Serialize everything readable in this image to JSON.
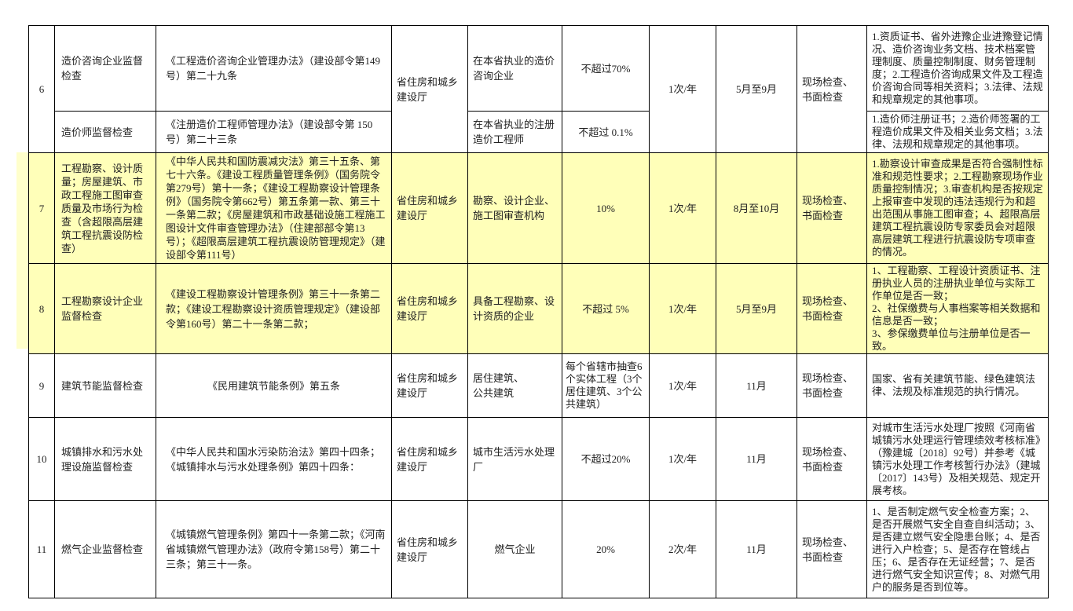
{
  "colors": {
    "highlight": "#ffffb9",
    "margin_highlight": "#ffffcc",
    "border": "#000000"
  },
  "rows": [
    {
      "no": "6",
      "item": "造价咨询企业监督检查",
      "basis": "《工程造价咨询企业管理办法》（建设部令第149号）第二十九条",
      "dept": "省住房和城乡建设厅",
      "object": "在本省执业的造价咨询企业",
      "ratio": "不超过70%",
      "freq": "1次/年",
      "time": "5月至9月",
      "method": "现场检查、书面检查",
      "content": "1.资质证书、省外进豫企业进豫登记情况、造价咨询业务文档、技术档案管理制度、质量控制制度、财务管理制度；2.工程造价咨询成果文件及工程造价咨询合同等相关资料；3.法律、法规和规章规定的其他事项。"
    },
    {
      "no": "",
      "item": "造价师监督检查",
      "basis": "《注册造价工程师管理办法》（建设部令第 150号）第二十三条",
      "dept": "",
      "object": "在本省执业的注册造价工程师",
      "ratio": "不超过 0.1%",
      "freq": "",
      "time": "",
      "method": "",
      "content": "1.造价师注册证书；2.造价师签署的工程造价成果文件及相关业务文档；3.法律、法规和规章规定的其他事项。"
    },
    {
      "no": "7",
      "item": "工程勘察、设计质量；房屋建筑、市政工程施工图审查质量及市场行为检查（含超限高层建筑工程抗震设防检查）",
      "basis": "《中华人民共和国防震减灾法》第三十五条、第七十六条。《建设工程质量管理条例》（国务院令第279号）第十一条；《建设工程勘察设计管理条例》（国务院令第662号）第五条第一款、第三十一条第二款；《房屋建筑和市政基础设施工程施工图设计文件审查管理办法》（住建部部令第13号）；《超限高层建筑工程抗震设防管理规定》（建设部令第111号）",
      "dept": "省住房和城乡建设厅",
      "object": "勘察、设计企业、施工图审查机构",
      "ratio": "10%",
      "freq": "1次/年",
      "time": "8月至10月",
      "method": "现场检查、书面检查",
      "content": "1.勘察设计审查成果是否符合强制性标准和规范性要求；2.工程勘察现场作业质量控制情况；3.审查机构是否按规定上报审查中发现的违法违规行为和超出范围从事施工图审查；4、超限高层建筑工程抗震设防专家委员会对超限高层建筑工程进行抗震设防专项审查的情况。"
    },
    {
      "no": "8",
      "item": "工程勘察设计企业监督检查",
      "basis": "《建设工程勘察设计管理条例》第三十一条第二款；《建设工程勘察设计资质管理规定》（建设部令第160号）第二十一条第二款；",
      "dept": "省住房和城乡建设厅",
      "object": "具备工程勘察、设计资质的企业",
      "ratio": "不超过 5%",
      "freq": "1次/年",
      "time": "5月至9月",
      "method": "现场检查、书面检查",
      "content": "1、工程勘察、工程设计资质证书、注册执业人员的注册执业单位与实际工作单位是否一致；\n2、社保缴费与人事档案等相关数据和信息是否一致；\n3、参保缴费单位与注册单位是否一致。"
    },
    {
      "no": "9",
      "item": "建筑节能监督检查",
      "basis": "《民用建筑节能条例》第五条",
      "dept": "省住房和城乡建设厅",
      "object": "居住建筑、\n公共建筑",
      "ratio": "每个省辖市抽查6个实体工程（3个居住建筑、3个公共建筑）",
      "freq": "1次/年",
      "time": "11月",
      "method": "现场检查、书面检查",
      "content": "国家、省有关建筑节能、绿色建筑法律、法规及标准规范的执行情况。"
    },
    {
      "no": "10",
      "item": "城镇排水和污水处理设施监督检查",
      "basis": "《中华人民共和国水污染防治法》第四十四条；《城镇排水与污水处理条例》第四十四条：",
      "dept": "省住房和城乡建设厅",
      "object": "城市生活污水处理厂",
      "ratio": "不超过20%",
      "freq": "1次/年",
      "time": "11月",
      "method": "现场检查、书面检查",
      "content": "对城市生活污水处理厂按照《河南省城镇污水处理运行管理绩效考核标准》（豫建城〔2018〕92号）并参考《城镇污水处理工作考核暂行办法》（建城〔2017〕143号）及相关规范、规定开展考核。"
    },
    {
      "no": "11",
      "item": "燃气企业监督检查",
      "basis": "《城镇燃气管理条例》第四十一条第二款；《河南省城镇燃气管理办法》（政府令第158号）第二十三条；第三十一条。",
      "dept": "省住房和城乡建设厅",
      "object": "燃气企业",
      "ratio": "20%",
      "freq": "2次/年",
      "time": "11月",
      "method": "现场检查、书面检查",
      "content": "1、是否制定燃气安全检查方案；2、是否开展燃气安全自查自纠活动；3、是否建立燃气安全隐患台账；4、是否进行入户检查；5、是否存在管线占压；6、是否存在无证经营；7、是否进行燃气安全知识宣传；8、对燃气用户的服务是否到位等。"
    }
  ]
}
